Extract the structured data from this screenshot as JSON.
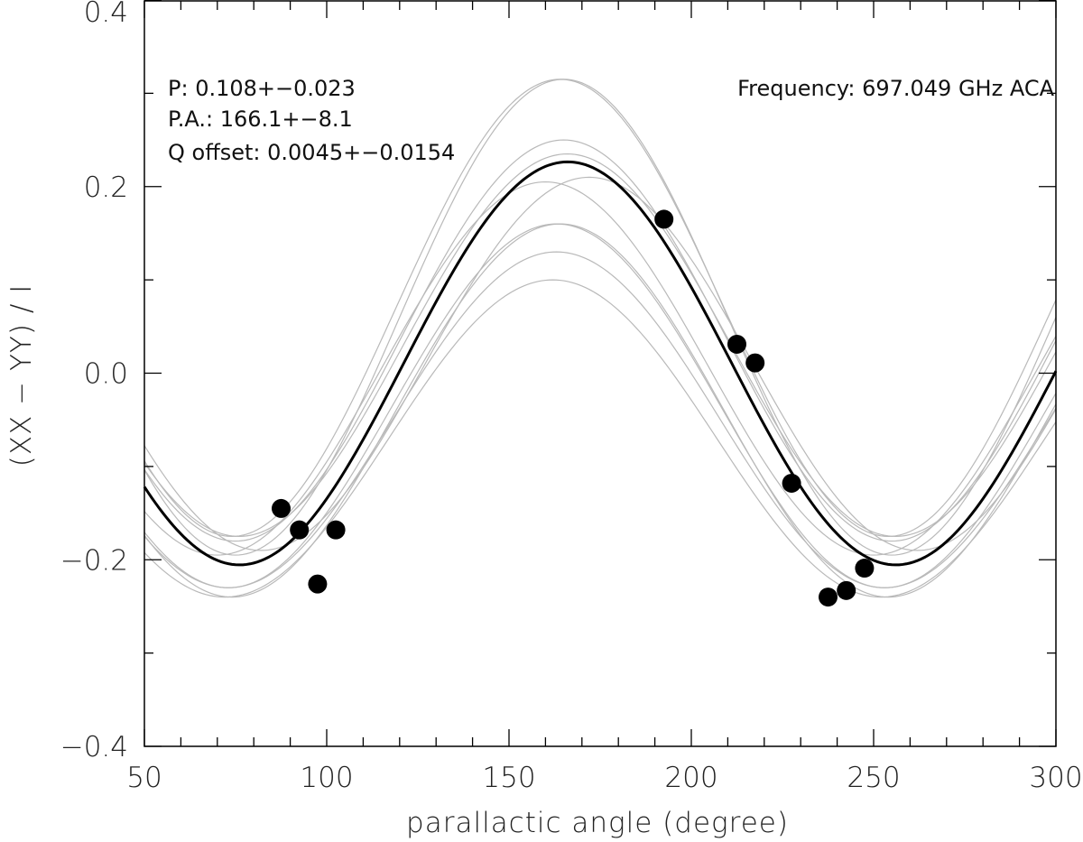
{
  "chart_data": {
    "type": "scatter",
    "title": "",
    "xlabel": "parallactic angle (degree)",
    "ylabel": "(XX − YY) / I",
    "xlim": [
      50,
      300
    ],
    "ylim": [
      -0.4,
      0.4
    ],
    "x_ticks": [
      50,
      100,
      150,
      200,
      250,
      300
    ],
    "x_tick_labels": [
      "50",
      "100",
      "150",
      "200",
      "250",
      "300"
    ],
    "y_ticks": [
      -0.4,
      -0.2,
      0.0,
      0.2,
      0.4
    ],
    "y_tick_labels": [
      "−0.4",
      "−0.2",
      "0.0",
      "0.2",
      "0.4"
    ],
    "x_minor_step": 10,
    "y_minor_step": 0.1,
    "grid": false,
    "points": {
      "x": [
        87.5,
        92.5,
        97.5,
        102.5,
        192.5,
        212.5,
        217.5,
        227.5,
        237.5,
        242.5,
        247.5
      ],
      "y": [
        -0.145,
        -0.168,
        -0.226,
        -0.168,
        0.165,
        0.031,
        0.011,
        -0.118,
        -0.24,
        -0.233,
        -0.209
      ]
    },
    "best_fit": {
      "amplitude": 0.216,
      "pa_deg": 166.1,
      "offset": 0.0105,
      "color": "#000000"
    },
    "sample_fits": {
      "color": "#b9b9b9",
      "curves": [
        {
          "amplitude": 0.245,
          "pa_deg": 164,
          "offset": 0.07
        },
        {
          "amplitude": 0.255,
          "pa_deg": 165,
          "offset": 0.06
        },
        {
          "amplitude": 0.215,
          "pa_deg": 165,
          "offset": 0.035
        },
        {
          "amplitude": 0.205,
          "pa_deg": 166,
          "offset": 0.03
        },
        {
          "amplitude": 0.2,
          "pa_deg": 160,
          "offset": 0.005
        },
        {
          "amplitude": 0.2,
          "pa_deg": 172,
          "offset": 0.01
        },
        {
          "amplitude": 0.2,
          "pa_deg": 164,
          "offset": -0.04
        },
        {
          "amplitude": 0.195,
          "pa_deg": 163,
          "offset": -0.035
        },
        {
          "amplitude": 0.18,
          "pa_deg": 163,
          "offset": -0.05
        },
        {
          "amplitude": 0.17,
          "pa_deg": 162,
          "offset": -0.07
        }
      ]
    },
    "annotations": {
      "polarization": "P: 0.108+−0.023",
      "position_angle": "P.A.: 166.1+−8.1",
      "q_offset": "Q offset: 0.0045+−0.0154",
      "frequency": "Frequency: 697.049 GHz ACA"
    }
  }
}
